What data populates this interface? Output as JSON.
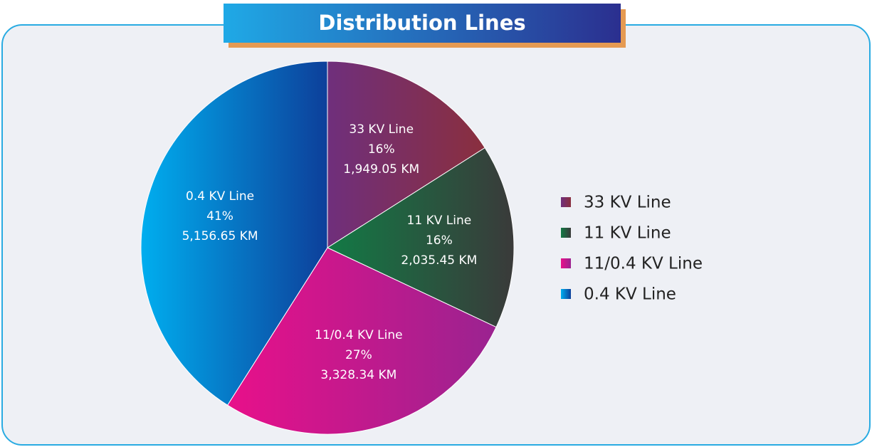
{
  "chart_data": {
    "type": "pie",
    "title": "Distribution Lines",
    "categories": [
      "33 KV Line",
      "11 KV Line",
      "11/0.4 KV Line",
      "0.4 KV Line"
    ],
    "values": [
      16,
      16,
      27,
      41
    ],
    "value_labels": [
      "16%",
      "16%",
      "27%",
      "41%"
    ],
    "lengths": [
      1949.05,
      2035.45,
      3328.34,
      5156.65
    ],
    "length_labels": [
      "1,949.05 KM",
      "2,035.45 KM",
      "3,328.34 KM",
      "5,156.65 KM"
    ],
    "colors": [
      [
        "#6f2f7c",
        "#8a2f3e"
      ],
      [
        "#127a45",
        "#3a3a3a"
      ],
      [
        "#e8108a",
        "#9a2390"
      ],
      [
        "#00aeef",
        "#0d3f9a"
      ]
    ],
    "legend": "right"
  }
}
